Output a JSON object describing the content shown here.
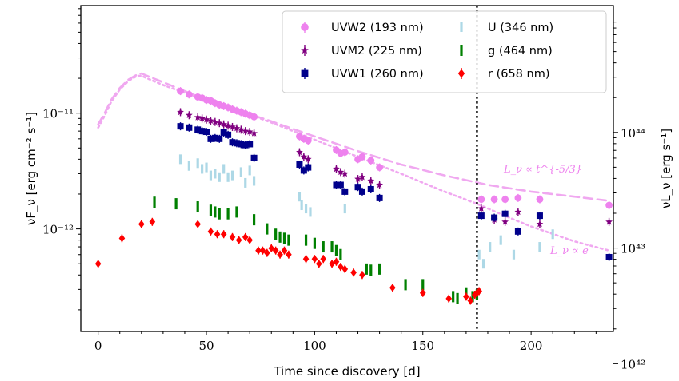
{
  "chart_data": {
    "type": "scatter",
    "xlabel": "Time since discovery [d]",
    "ylabel": "νF_ν [erg cm⁻² s⁻¹]",
    "ylabel_right": "νL_ν [erg s⁻¹]",
    "xlim": [
      -8,
      238
    ],
    "ylim": [
      1.3e-13,
      8.5e-11
    ],
    "yscale": "log",
    "right_ylim": [
      1.9e+42,
      1.25e+45
    ],
    "xticks": [
      0,
      50,
      100,
      150,
      200
    ],
    "xtick_labels": [
      "0",
      "50",
      "100",
      "150",
      "200"
    ],
    "yticks": [
      1e-12,
      1e-11
    ],
    "ytick_labels": [
      "10⁻¹²",
      "10⁻¹¹"
    ],
    "right_yticks": [
      1e+42,
      1e+43,
      1e+44
    ],
    "right_ytick_labels": [
      "10⁴²",
      "10⁴³",
      "10⁴⁴"
    ],
    "legend_position": "top-right",
    "vline": {
      "x": 175,
      "style": "dotted",
      "color": "#000000"
    },
    "series": [
      {
        "name": "UVW2 (193 nm)",
        "color": "#ee82ee",
        "marker": "circle",
        "x": [
          38,
          42,
          46,
          48,
          50,
          52,
          54,
          56,
          58,
          60,
          62,
          64,
          66,
          68,
          70,
          72,
          93,
          95,
          97,
          110,
          112,
          114,
          120,
          122,
          126,
          130,
          177,
          183,
          188,
          194,
          204,
          236
        ],
        "y": [
          1.55e-11,
          1.45e-11,
          1.38e-11,
          1.35e-11,
          1.3e-11,
          1.28e-11,
          1.22e-11,
          1.18e-11,
          1.15e-11,
          1.12e-11,
          1.08e-11,
          1.05e-11,
          1.02e-11,
          9.9e-12,
          9.6e-12,
          9.3e-12,
          6.3e-12,
          6e-12,
          5.8e-12,
          4.8e-12,
          4.5e-12,
          4.6e-12,
          4e-12,
          4.2e-12,
          3.9e-12,
          3.4e-12,
          1.8e-12,
          1.8e-12,
          1.8e-12,
          1.85e-12,
          1.8e-12,
          1.6e-12
        ]
      },
      {
        "name": "UVM2 (225 nm)",
        "color": "#800080",
        "marker": "star",
        "x": [
          38,
          42,
          46,
          48,
          50,
          52,
          54,
          56,
          58,
          60,
          62,
          64,
          66,
          68,
          70,
          72,
          93,
          95,
          97,
          110,
          112,
          114,
          120,
          122,
          126,
          130,
          177,
          183,
          188,
          194,
          204,
          236
        ],
        "y": [
          1.02e-11,
          9.6e-12,
          9.2e-12,
          9e-12,
          8.8e-12,
          8.6e-12,
          8.4e-12,
          8.2e-12,
          8e-12,
          7.8e-12,
          7.6e-12,
          7.4e-12,
          7.2e-12,
          7e-12,
          6.9e-12,
          6.7e-12,
          4.6e-12,
          4.2e-12,
          4e-12,
          3.3e-12,
          3.1e-12,
          3e-12,
          2.7e-12,
          2.8e-12,
          2.6e-12,
          2.4e-12,
          1.5e-12,
          1.2e-12,
          1.15e-12,
          1.4e-12,
          1.1e-12,
          1.15e-12
        ]
      },
      {
        "name": "UVW1 (260 nm)",
        "color": "#00008b",
        "marker": "square",
        "x": [
          38,
          42,
          46,
          48,
          50,
          52,
          54,
          56,
          58,
          60,
          62,
          64,
          66,
          68,
          70,
          72,
          93,
          95,
          97,
          110,
          112,
          114,
          120,
          122,
          126,
          130,
          177,
          183,
          188,
          194,
          204,
          236
        ],
        "y": [
          7.7e-12,
          7.5e-12,
          7.2e-12,
          7e-12,
          6.9e-12,
          6e-12,
          6.1e-12,
          6e-12,
          6.8e-12,
          6.5e-12,
          5.6e-12,
          5.5e-12,
          5.4e-12,
          5.3e-12,
          5.4e-12,
          4.1e-12,
          3.6e-12,
          3.2e-12,
          3.4e-12,
          2.4e-12,
          2.4e-12,
          2.1e-12,
          2.3e-12,
          2.1e-12,
          2.2e-12,
          1.85e-12,
          1.3e-12,
          1.25e-12,
          1.35e-12,
          9.5e-13,
          1.3e-12,
          5.7e-13
        ]
      },
      {
        "name": "U (346 nm)",
        "color": "#add8e6",
        "marker": "vbar",
        "x": [
          38,
          42,
          46,
          48,
          50,
          52,
          54,
          56,
          58,
          60,
          62,
          66,
          68,
          70,
          72,
          93,
          94,
          96,
          98,
          114,
          176,
          178,
          181,
          186,
          192,
          204,
          210
        ],
        "y": [
          4e-12,
          3.5e-12,
          3.7e-12,
          3.3e-12,
          3.4e-12,
          2.9e-12,
          3e-12,
          2.8e-12,
          3.3e-12,
          2.8e-12,
          2.9e-12,
          3.1e-12,
          2.5e-12,
          3.2e-12,
          2.6e-12,
          1.9e-12,
          1.6e-12,
          1.5e-12,
          1.4e-12,
          1.5e-12,
          6e-13,
          5e-13,
          7e-13,
          8e-13,
          6e-13,
          7e-13,
          9e-13
        ]
      },
      {
        "name": "g (464 nm)",
        "color": "#008000",
        "marker": "errbar",
        "x": [
          26,
          36,
          46,
          52,
          54,
          56,
          60,
          64,
          72,
          78,
          82,
          84,
          86,
          88,
          96,
          100,
          104,
          108,
          110,
          112,
          124,
          126,
          130,
          142,
          150,
          164,
          166,
          170,
          173,
          175
        ],
        "y": [
          1.7e-12,
          1.65e-12,
          1.55e-12,
          1.45e-12,
          1.4e-12,
          1.35e-12,
          1.35e-12,
          1.4e-12,
          1.2e-12,
          1e-12,
          9e-13,
          8.5e-13,
          8.3e-13,
          8e-13,
          8e-13,
          7.5e-13,
          7e-13,
          7e-13,
          6.5e-13,
          6e-13,
          4.5e-13,
          4.4e-13,
          4.5e-13,
          3.3e-13,
          3.3e-13,
          2.6e-13,
          2.5e-13,
          2.8e-13,
          2.6e-13,
          2.7e-13
        ]
      },
      {
        "name": "r (658 nm)",
        "color": "#ff0000",
        "marker": "diamond",
        "x": [
          0,
          11,
          20,
          25,
          46,
          52,
          55,
          58,
          62,
          65,
          68,
          70,
          74,
          76,
          78,
          80,
          82,
          84,
          86,
          88,
          96,
          100,
          102,
          104,
          108,
          110,
          112,
          114,
          118,
          122,
          136,
          150,
          162,
          170,
          172,
          174,
          175,
          176
        ],
        "y": [
          5e-13,
          8.3e-13,
          1.1e-12,
          1.15e-12,
          1.1e-12,
          9.5e-13,
          9e-13,
          9e-13,
          8.5e-13,
          8e-13,
          8.5e-13,
          8e-13,
          6.5e-13,
          6.5e-13,
          6.2e-13,
          6.8e-13,
          6.5e-13,
          6e-13,
          6.5e-13,
          6e-13,
          5.5e-13,
          5.5e-13,
          5e-13,
          5.5e-13,
          5e-13,
          5.2e-13,
          4.7e-13,
          4.5e-13,
          4.2e-13,
          4e-13,
          3.1e-13,
          2.8e-13,
          2.5e-13,
          2.6e-13,
          2.4e-13,
          2.7e-13,
          2.8e-13,
          2.9e-13
        ]
      }
    ],
    "model_curves": [
      {
        "label": "L_ν ∝ t^{-5/3}",
        "style": "dashed",
        "color": "#f0a8f0",
        "x": [
          0,
          3,
          6,
          10,
          14,
          18,
          20,
          24,
          30,
          40,
          50,
          60,
          70,
          80,
          90,
          100,
          120,
          140,
          160,
          180,
          200,
          220,
          236
        ],
        "y": [
          8e-12,
          1e-11,
          1.3e-11,
          1.65e-11,
          1.95e-11,
          2.15e-11,
          2.2e-11,
          2.05e-11,
          1.85e-11,
          1.55e-11,
          1.3e-11,
          1.12e-11,
          9.8e-12,
          8.5e-12,
          7.3e-12,
          6.3e-12,
          4.7e-12,
          3.6e-12,
          2.9e-12,
          2.4e-12,
          2.1e-12,
          1.9e-12,
          1.75e-12
        ]
      },
      {
        "label": "L_ν ∝ e",
        "style": "dotted",
        "color": "#f0a8f0",
        "x": [
          0,
          3,
          6,
          10,
          14,
          18,
          20,
          24,
          30,
          40,
          50,
          60,
          70,
          80,
          90,
          100,
          120,
          140,
          160,
          175,
          190,
          200,
          220,
          236
        ],
        "y": [
          7.5e-12,
          9.5e-12,
          1.25e-11,
          1.6e-11,
          1.9e-11,
          2.1e-11,
          2.1e-11,
          1.95e-11,
          1.75e-11,
          1.5e-11,
          1.3e-11,
          1.12e-11,
          9.7e-12,
          8.3e-12,
          7e-12,
          5.9e-12,
          4.2e-12,
          3e-12,
          2.1e-12,
          1.65e-12,
          1.25e-12,
          1.05e-12,
          7.8e-13,
          6.5e-13
        ]
      }
    ]
  }
}
